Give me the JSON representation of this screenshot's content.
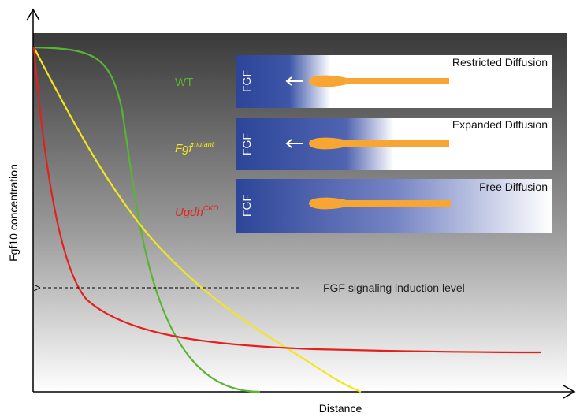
{
  "axes": {
    "y_label": "Fgf10 concentration",
    "x_label": "Distance"
  },
  "curves": [
    {
      "label": "WT",
      "superscript": null
    },
    {
      "label": "Fgf",
      "superscript": "mutant"
    },
    {
      "label": "Ugdh",
      "superscript": "CKO"
    }
  ],
  "threshold": {
    "label": "FGF signaling induction level"
  },
  "panels": [
    {
      "title": "Restricted Diffusion",
      "source": "FGF"
    },
    {
      "title": "Expanded Diffusion",
      "source": "FGF"
    },
    {
      "title": "Free Diffusion",
      "source": "FGF"
    }
  ]
}
